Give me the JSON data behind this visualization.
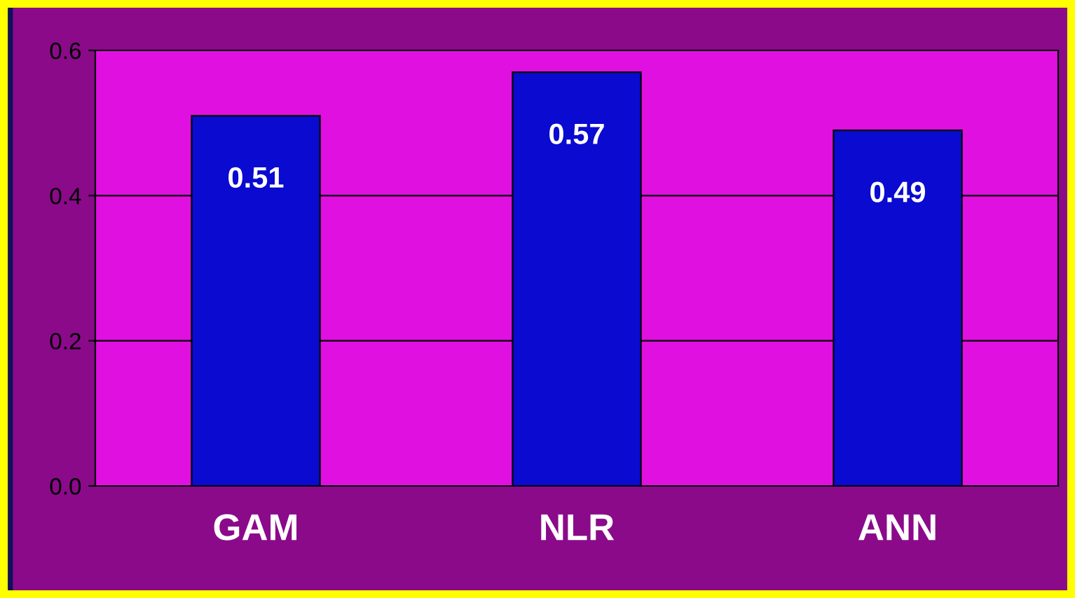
{
  "chart_data": {
    "type": "bar",
    "categories": [
      "GAM",
      "NLR",
      "ANN"
    ],
    "values": [
      0.51,
      0.57,
      0.49
    ],
    "color": "#0a0ad0",
    "data_labels": true,
    "ylim": [
      0,
      0.6
    ],
    "yticks": [
      {
        "value": 0,
        "label": "0.0"
      },
      {
        "value": 0.2,
        "label": "0.2"
      },
      {
        "value": 0.4,
        "label": "0.4"
      },
      {
        "value": 0.6,
        "label": "0.6"
      }
    ],
    "grid": "y",
    "legend": false
  }
}
